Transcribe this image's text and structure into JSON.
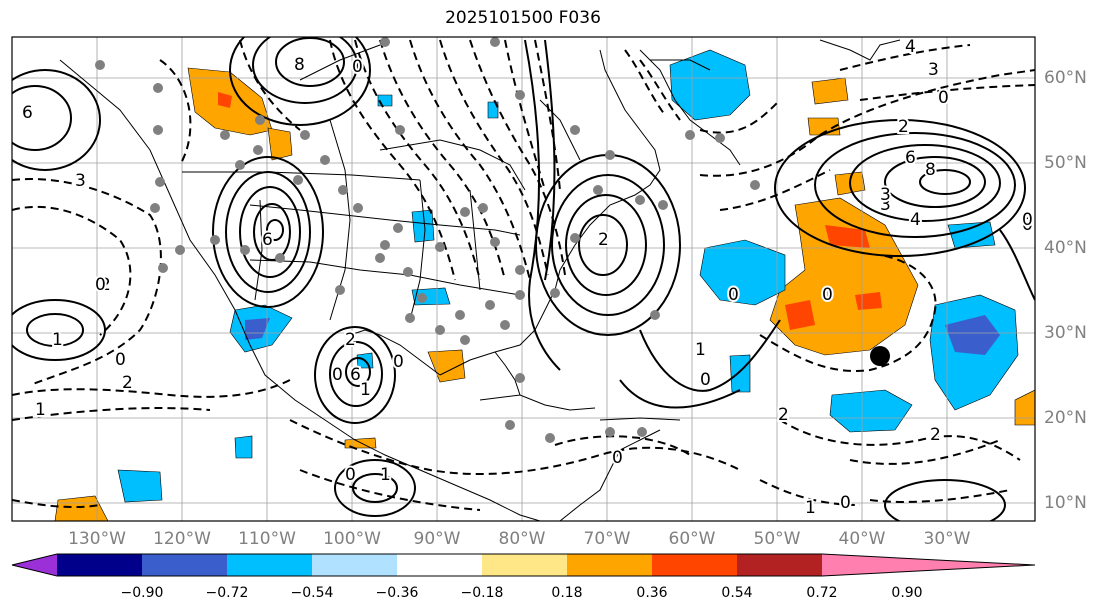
{
  "title": "2025101500 F036",
  "lon_labels": [
    "130°W",
    "120°W",
    "110°W",
    "100°W",
    "90°W",
    "80°W",
    "70°W",
    "60°W",
    "50°W",
    "40°W",
    "30°W"
  ],
  "lat_labels": [
    "60°N",
    "50°N",
    "40°N",
    "30°N",
    "20°N",
    "10°N"
  ],
  "colorbar": {
    "ticks": [
      "−0.90",
      "−0.72",
      "−0.54",
      "−0.36",
      "−0.18",
      "0.18",
      "0.36",
      "0.54",
      "0.72",
      "0.90"
    ],
    "colors": [
      "#9b30d9",
      "#00008b",
      "#3a5fcd",
      "#00bfff",
      "#b0e2ff",
      "#ffffff",
      "#ffe788",
      "#ffa500",
      "#ff4500",
      "#b22222",
      "#ff7fae"
    ]
  },
  "contour_labels": [
    "4",
    "3",
    "0",
    "2",
    "6",
    "8",
    "3",
    "4",
    "0",
    "6",
    "3",
    "2",
    "0",
    "1",
    "0",
    "2",
    "1",
    "6",
    "0",
    "0",
    "2",
    "1",
    "2",
    "0",
    "0",
    "1",
    "0",
    "0",
    "2",
    "6",
    "1",
    "0",
    "2",
    "3",
    "0",
    "0",
    "1",
    "8",
    "0"
  ],
  "fill_colors": {
    "orange": "#ffa500",
    "red": "#ff4500",
    "sky": "#00bfff",
    "blue": "#3a5fcd",
    "dot": "#808080"
  }
}
